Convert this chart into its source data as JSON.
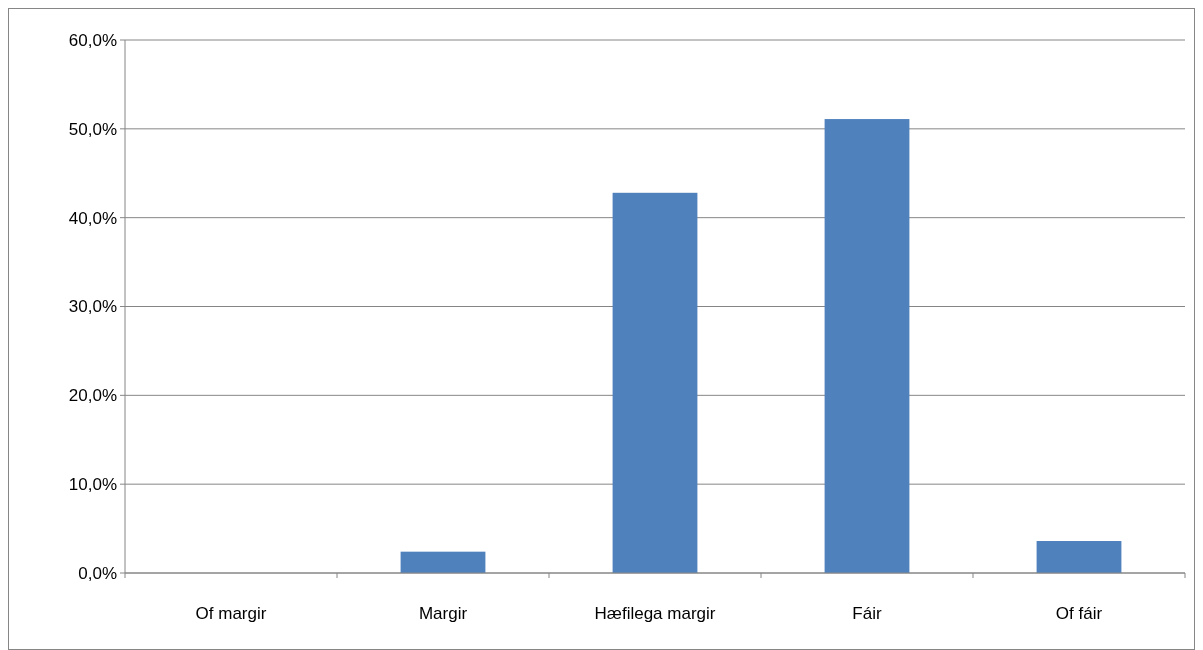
{
  "chart_data": {
    "type": "bar",
    "categories": [
      "Of margir",
      "Margir",
      "Hæfilega margir",
      "Fáir",
      "Of fáir"
    ],
    "values": [
      0,
      2.4,
      42.8,
      51.1,
      3.6
    ],
    "color": "#4f81bd",
    "ylim": [
      0,
      60
    ],
    "yticks": [
      {
        "value": 0,
        "label": "0,0%"
      },
      {
        "value": 10,
        "label": "10,0%"
      },
      {
        "value": 20,
        "label": "20,0%"
      },
      {
        "value": 30,
        "label": "30,0%"
      },
      {
        "value": 40,
        "label": "40,0%"
      },
      {
        "value": 50,
        "label": "50,0%"
      },
      {
        "value": 60,
        "label": "60,0%"
      }
    ],
    "grid": "y"
  }
}
